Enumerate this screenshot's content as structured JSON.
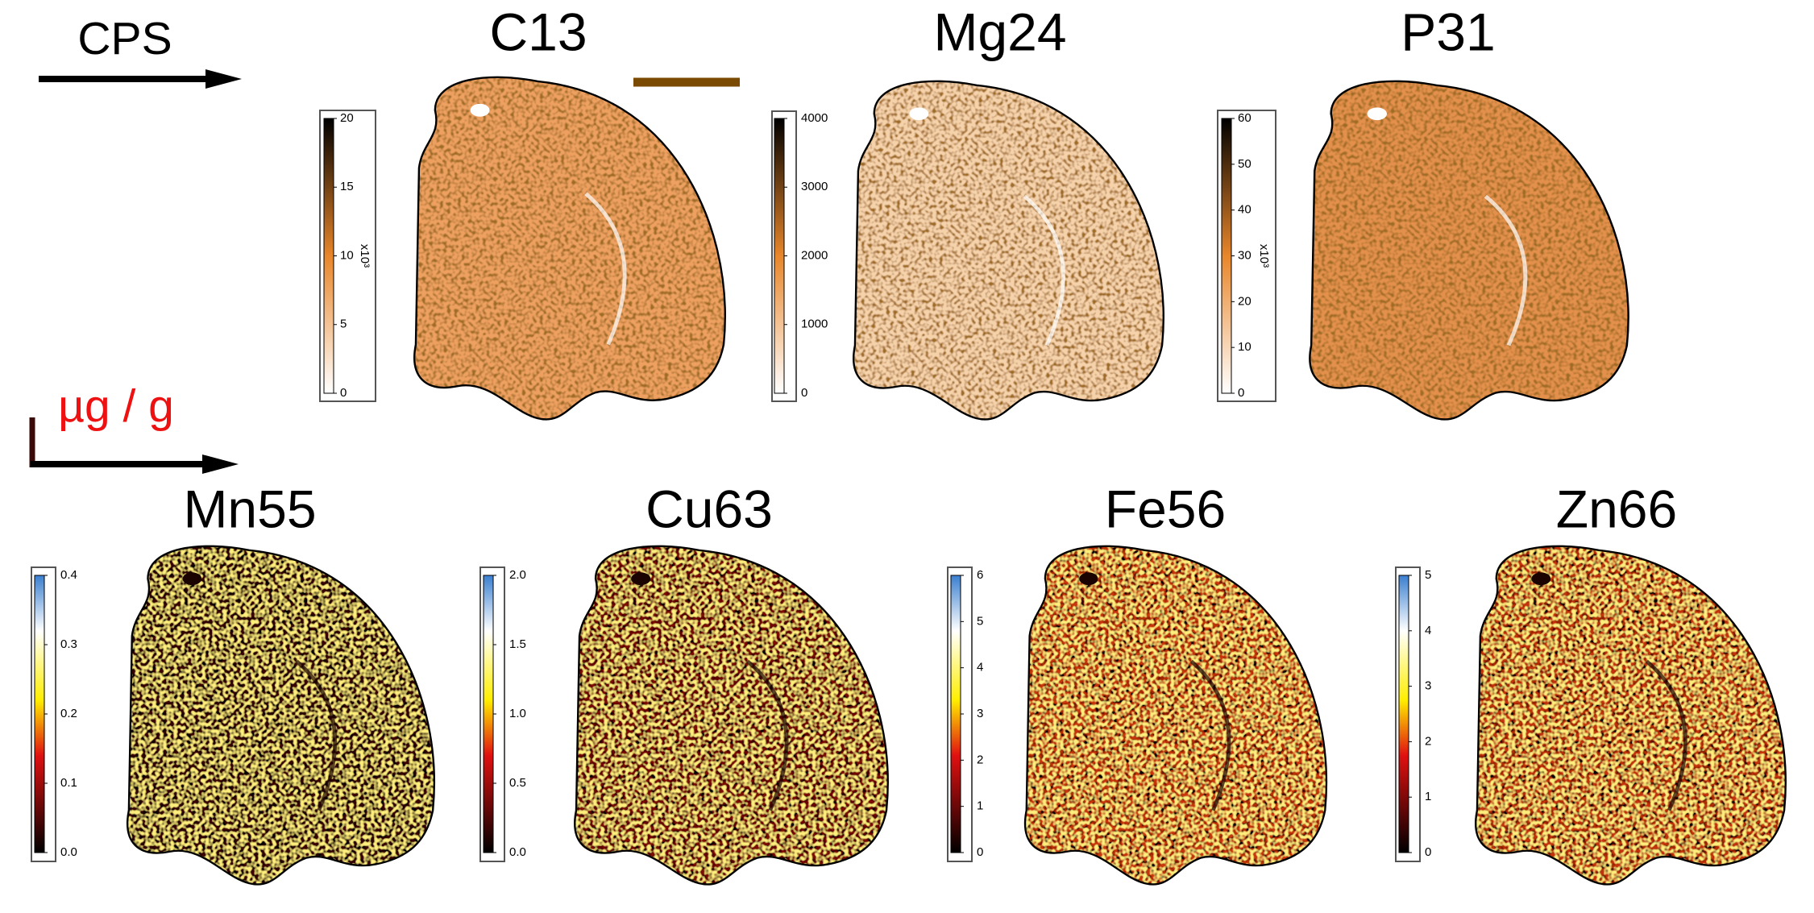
{
  "top_label": "CPS",
  "bottom_label": "µg / g",
  "panels": [
    {
      "title": "C13",
      "ticks": [
        "0",
        "5",
        "10",
        "15",
        "20"
      ],
      "exponent": "x10³"
    },
    {
      "title": "Mg24",
      "ticks": [
        "0",
        "1000",
        "2000",
        "3000",
        "4000"
      ]
    },
    {
      "title": "P31",
      "ticks": [
        "0",
        "10",
        "20",
        "30",
        "40",
        "50",
        "60"
      ],
      "exponent": "x10³"
    },
    {
      "title": "Mn55",
      "ticks": [
        "0.0",
        "0.1",
        "0.2",
        "0.3",
        "0.4"
      ]
    },
    {
      "title": "Cu63",
      "ticks": [
        "0.0",
        "0.5",
        "1.0",
        "1.5",
        "2.0"
      ]
    },
    {
      "title": "Fe56",
      "ticks": [
        "0",
        "1",
        "2",
        "3",
        "4",
        "5",
        "6"
      ]
    },
    {
      "title": "Zn66",
      "ticks": [
        "0",
        "1",
        "2",
        "3",
        "4",
        "5"
      ]
    }
  ]
}
